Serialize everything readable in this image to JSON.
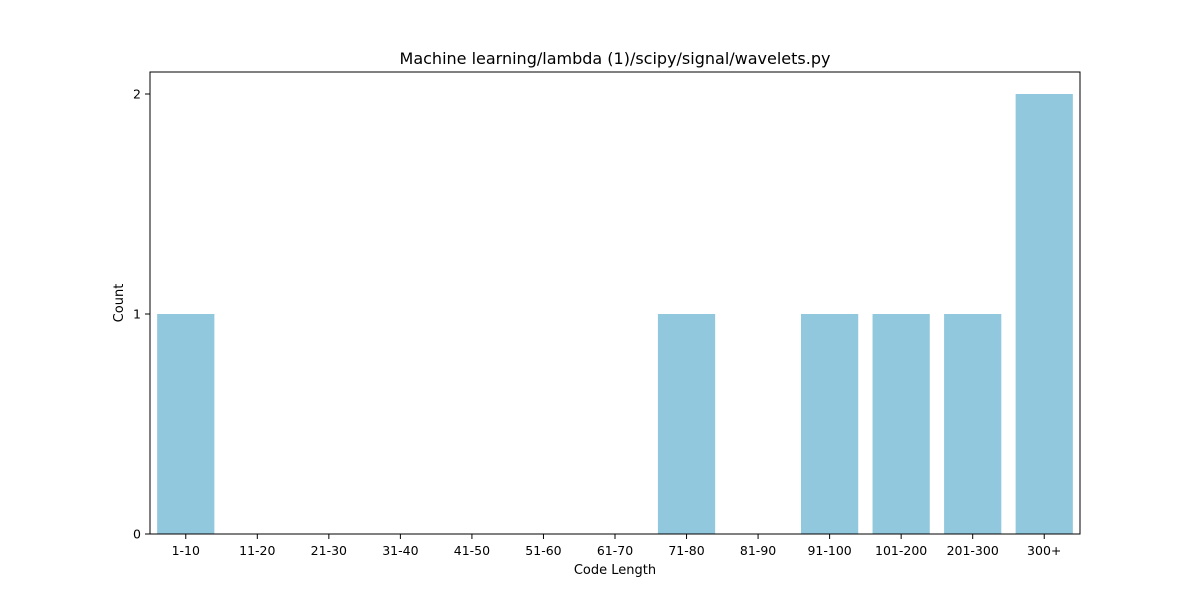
{
  "chart_data": {
    "type": "bar",
    "title": "Machine learning/lambda (1)/scipy/signal/wavelets.py",
    "xlabel": "Code Length",
    "ylabel": "Count",
    "categories": [
      "1-10",
      "11-20",
      "21-30",
      "31-40",
      "41-50",
      "51-60",
      "61-70",
      "71-80",
      "81-90",
      "91-100",
      "101-200",
      "201-300",
      "300+"
    ],
    "values": [
      1,
      0,
      0,
      0,
      0,
      0,
      0,
      1,
      0,
      1,
      1,
      1,
      2
    ],
    "ylim": [
      0,
      2.1
    ],
    "yticks": [
      0,
      1,
      2
    ],
    "bar_color": "#92c8dd",
    "grid": false,
    "legend": "none"
  }
}
